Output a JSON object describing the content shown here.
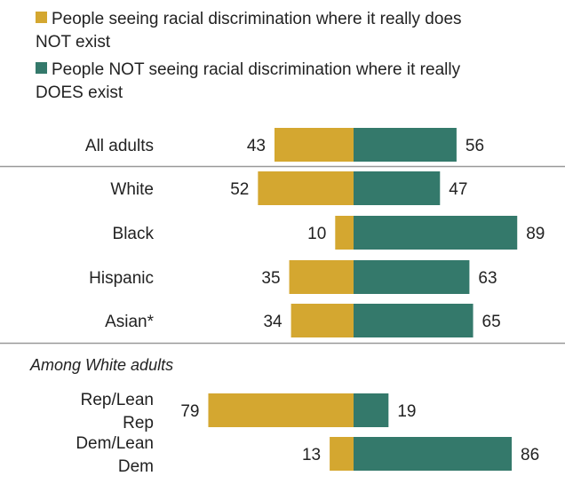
{
  "chart_data": {
    "type": "bar",
    "orientation": "horizontal-diverging",
    "legend": {
      "placement": "top-left",
      "items": [
        {
          "key": "not_exist",
          "lines": [
            "People seeing racial discrimination where it really does",
            "NOT exist"
          ],
          "color": "#D4A730"
        },
        {
          "key": "does_exist",
          "lines": [
            "People NOT seeing racial discrimination where it really",
            "DOES exist"
          ],
          "color": "#34796B"
        }
      ]
    },
    "series": [
      {
        "key": "not_exist",
        "color": "#D4A730"
      },
      {
        "key": "does_exist",
        "color": "#34796B"
      }
    ],
    "groups": [
      {
        "section": "",
        "rows": [
          {
            "label": [
              "All adults"
            ],
            "not_exist": 43,
            "does_exist": 56
          }
        ]
      },
      {
        "section": "",
        "rows": [
          {
            "label": [
              "White"
            ],
            "not_exist": 52,
            "does_exist": 47
          },
          {
            "label": [
              "Black"
            ],
            "not_exist": 10,
            "does_exist": 89
          },
          {
            "label": [
              "Hispanic"
            ],
            "not_exist": 35,
            "does_exist": 63
          },
          {
            "label": [
              "Asian*"
            ],
            "not_exist": 34,
            "does_exist": 65
          }
        ]
      },
      {
        "section": "Among White adults",
        "rows": [
          {
            "label": [
              "Rep/Lean",
              "Rep"
            ],
            "not_exist": 79,
            "does_exist": 19
          },
          {
            "label": [
              "Dem/Lean",
              "Dem"
            ],
            "not_exist": 13,
            "does_exist": 86
          }
        ]
      }
    ],
    "divider_color": "#999999"
  }
}
